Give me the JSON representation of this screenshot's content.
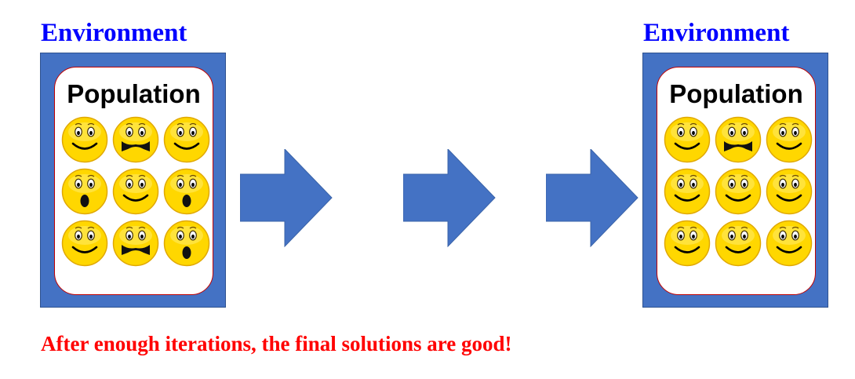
{
  "left_environment": {
    "title": "Environment",
    "population_label": "Population",
    "faces": [
      {
        "expression": "smile-face-icon"
      },
      {
        "expression": "mustache-face-icon"
      },
      {
        "expression": "smile-face-icon"
      },
      {
        "expression": "surprised-face-icon"
      },
      {
        "expression": "smile-face-icon"
      },
      {
        "expression": "surprised-face-icon"
      },
      {
        "expression": "smile-face-icon"
      },
      {
        "expression": "mustache-face-icon"
      },
      {
        "expression": "surprised-face-icon"
      }
    ]
  },
  "right_environment": {
    "title": "Environment",
    "population_label": "Population",
    "faces": [
      {
        "expression": "smile-face-icon"
      },
      {
        "expression": "mustache-face-icon"
      },
      {
        "expression": "smile-face-icon"
      },
      {
        "expression": "smile-face-icon"
      },
      {
        "expression": "smile-face-icon"
      },
      {
        "expression": "smile-face-icon"
      },
      {
        "expression": "smile-face-icon"
      },
      {
        "expression": "smile-face-icon"
      },
      {
        "expression": "smile-face-icon"
      }
    ]
  },
  "arrows": [
    "right-arrow-icon",
    "right-arrow-icon",
    "right-arrow-icon"
  ],
  "caption": "After enough iterations, the final solutions are good!",
  "colors": {
    "title": "#0000ff",
    "environment_fill": "#4472c4",
    "panel_border": "#c00000",
    "face_yellow": "#ffd700",
    "arrow_fill": "#4472c4",
    "caption": "#ff0000"
  }
}
